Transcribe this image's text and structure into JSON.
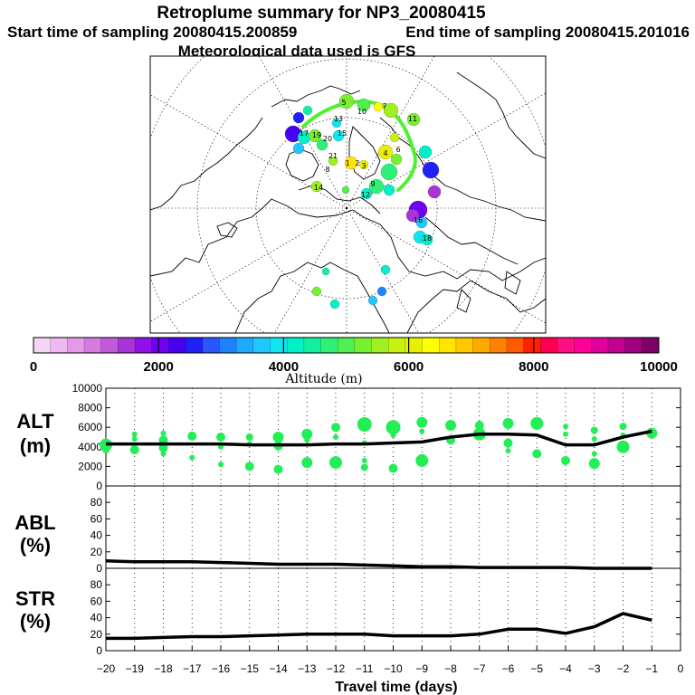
{
  "header": {
    "title": "Retroplume summary for NP3_20080415",
    "start_label": "Start time of sampling 20080415.200859",
    "end_label": "End time of sampling 20080415.201016",
    "met_label": "Meteorological data used is GFS"
  },
  "map": {
    "labels": [
      "5",
      "7",
      "10",
      "11",
      "13",
      "15",
      "17",
      "19",
      "20",
      "21",
      "1",
      "2",
      "3",
      "4",
      "6",
      "8",
      "9",
      "12",
      "14",
      "16",
      "18"
    ]
  },
  "colorbar": {
    "title": "Altitude (m)",
    "tick_labels": [
      "0",
      "2000",
      "4000",
      "6000",
      "8000",
      "10000"
    ],
    "colors": [
      "#f5d4f5",
      "#f0b8f0",
      "#e39be8",
      "#d57be0",
      "#c05ad8",
      "#a935d8",
      "#9010e8",
      "#7000f0",
      "#4a00f0",
      "#2020f8",
      "#2a55ff",
      "#1e82ff",
      "#1eaaff",
      "#20c8ff",
      "#10e6f0",
      "#00f0c8",
      "#10f0a0",
      "#30f078",
      "#50f050",
      "#78f030",
      "#a0f020",
      "#c8f010",
      "#e8f000",
      "#ffff00",
      "#ffe600",
      "#ffc800",
      "#ffaa00",
      "#ff8200",
      "#ff5a00",
      "#ff2000",
      "#ff0050",
      "#ff1080",
      "#ff0099",
      "#e0009a",
      "#c40090",
      "#a00080",
      "#80006a"
    ]
  },
  "chart_data": [
    {
      "type": "line",
      "name": "ALT",
      "ylabel": "ALT (m)",
      "ylim": [
        0,
        10000
      ],
      "y_ticks": [
        "0",
        "2000",
        "4000",
        "6000",
        "8000",
        "10000"
      ],
      "x": [
        -20,
        -19,
        -18,
        -17,
        -16,
        -15,
        -14,
        -13,
        -12,
        -11,
        -10,
        -9,
        -8,
        -7,
        -6,
        -5,
        -4,
        -3,
        -2,
        -1
      ],
      "values": [
        4300,
        4300,
        4300,
        4300,
        4300,
        4200,
        4200,
        4200,
        4300,
        4300,
        4400,
        4500,
        5000,
        5300,
        5300,
        5200,
        4200,
        4200,
        5000,
        5600
      ],
      "clusters": [
        {
          "x": -20,
          "y": 4200,
          "r": 7
        },
        {
          "x": -20,
          "y": 3700,
          "r": 4
        },
        {
          "x": -19,
          "y": 5300,
          "r": 3
        },
        {
          "x": -19,
          "y": 4800,
          "r": 3
        },
        {
          "x": -19,
          "y": 3700,
          "r": 5
        },
        {
          "x": -18,
          "y": 5400,
          "r": 3
        },
        {
          "x": -18,
          "y": 4700,
          "r": 5
        },
        {
          "x": -18,
          "y": 3900,
          "r": 5
        },
        {
          "x": -18,
          "y": 3300,
          "r": 3
        },
        {
          "x": -17,
          "y": 5100,
          "r": 5
        },
        {
          "x": -17,
          "y": 2900,
          "r": 3
        },
        {
          "x": -16,
          "y": 5000,
          "r": 5
        },
        {
          "x": -16,
          "y": 4000,
          "r": 3
        },
        {
          "x": -16,
          "y": 2200,
          "r": 3
        },
        {
          "x": -15,
          "y": 5000,
          "r": 4
        },
        {
          "x": -15,
          "y": 4300,
          "r": 3
        },
        {
          "x": -15,
          "y": 2000,
          "r": 5
        },
        {
          "x": -14,
          "y": 5000,
          "r": 6
        },
        {
          "x": -14,
          "y": 4100,
          "r": 5
        },
        {
          "x": -14,
          "y": 1700,
          "r": 5
        },
        {
          "x": -13,
          "y": 5300,
          "r": 6
        },
        {
          "x": -13,
          "y": 4700,
          "r": 3
        },
        {
          "x": -13,
          "y": 2400,
          "r": 6
        },
        {
          "x": -12,
          "y": 6000,
          "r": 5
        },
        {
          "x": -12,
          "y": 5000,
          "r": 3
        },
        {
          "x": -12,
          "y": 2400,
          "r": 7
        },
        {
          "x": -11,
          "y": 6300,
          "r": 8
        },
        {
          "x": -11,
          "y": 4400,
          "r": 3
        },
        {
          "x": -11,
          "y": 2600,
          "r": 3
        },
        {
          "x": -11,
          "y": 1900,
          "r": 4
        },
        {
          "x": -10,
          "y": 6000,
          "r": 8
        },
        {
          "x": -10,
          "y": 5200,
          "r": 3
        },
        {
          "x": -10,
          "y": 1800,
          "r": 5
        },
        {
          "x": -9,
          "y": 6500,
          "r": 6
        },
        {
          "x": -9,
          "y": 5600,
          "r": 3
        },
        {
          "x": -9,
          "y": 2600,
          "r": 7
        },
        {
          "x": -8,
          "y": 6200,
          "r": 6
        },
        {
          "x": -8,
          "y": 4700,
          "r": 5
        },
        {
          "x": -7,
          "y": 6200,
          "r": 5
        },
        {
          "x": -7,
          "y": 5300,
          "r": 7
        },
        {
          "x": -6,
          "y": 6400,
          "r": 6
        },
        {
          "x": -6,
          "y": 4400,
          "r": 5
        },
        {
          "x": -6,
          "y": 3600,
          "r": 3
        },
        {
          "x": -5,
          "y": 6400,
          "r": 7
        },
        {
          "x": -5,
          "y": 3300,
          "r": 5
        },
        {
          "x": -4,
          "y": 6100,
          "r": 3
        },
        {
          "x": -4,
          "y": 5300,
          "r": 3
        },
        {
          "x": -4,
          "y": 2600,
          "r": 5
        },
        {
          "x": -3,
          "y": 5700,
          "r": 4
        },
        {
          "x": -3,
          "y": 4800,
          "r": 3
        },
        {
          "x": -3,
          "y": 3300,
          "r": 3
        },
        {
          "x": -3,
          "y": 2300,
          "r": 6
        },
        {
          "x": -2,
          "y": 6100,
          "r": 4
        },
        {
          "x": -2,
          "y": 5200,
          "r": 3
        },
        {
          "x": -2,
          "y": 4000,
          "r": 7
        },
        {
          "x": -1,
          "y": 5400,
          "r": 6
        }
      ]
    },
    {
      "type": "line",
      "name": "ABL",
      "ylabel": "ABL (%)",
      "ylim": [
        0,
        100
      ],
      "y_ticks": [
        "0",
        "20",
        "40",
        "60",
        "80"
      ],
      "x": [
        -20,
        -19,
        -18,
        -17,
        -16,
        -15,
        -14,
        -13,
        -12,
        -11,
        -10,
        -9,
        -8,
        -7,
        -6,
        -5,
        -4,
        -3,
        -2,
        -1
      ],
      "values": [
        9,
        8,
        8,
        8,
        7,
        6,
        5,
        5,
        5,
        4,
        3,
        2,
        2,
        1,
        1,
        1,
        1,
        0,
        0,
        0
      ]
    },
    {
      "type": "line",
      "name": "STR",
      "ylabel": "STR (%)",
      "ylim": [
        0,
        100
      ],
      "y_ticks": [
        "0",
        "20",
        "40",
        "60",
        "80"
      ],
      "x": [
        -20,
        -19,
        -18,
        -17,
        -16,
        -15,
        -14,
        -13,
        -12,
        -11,
        -10,
        -9,
        -8,
        -7,
        -6,
        -5,
        -4,
        -3,
        -2,
        -1
      ],
      "values": [
        15,
        15,
        16,
        17,
        17,
        18,
        19,
        20,
        20,
        20,
        18,
        18,
        18,
        20,
        26,
        26,
        21,
        29,
        45,
        37
      ],
      "xlabel": "Travel time (days)",
      "x_ticks": [
        "−20",
        "−19",
        "−18",
        "−17",
        "−16",
        "−15",
        "−14",
        "−13",
        "−12",
        "−11",
        "−10",
        "−9",
        "−8",
        "−7",
        "−6",
        "−5",
        "−4",
        "−3",
        "−2",
        "−1",
        "0"
      ]
    }
  ]
}
